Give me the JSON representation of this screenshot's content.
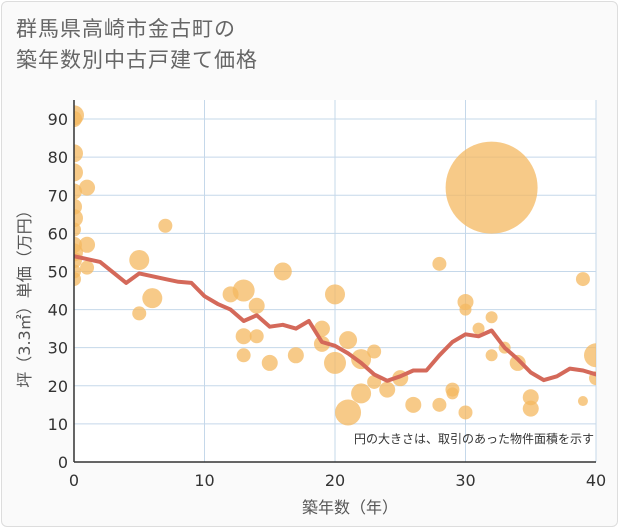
{
  "title_lines": [
    "群馬県高崎市金古町の",
    "築年数別中古戸建て価格"
  ],
  "chart_data": {
    "type": "scatter+line",
    "xlabel": "築年数（年）",
    "ylabel": "坪（3.3㎡）単価（万円）",
    "note": "円の大きさは、取引のあった物件面積を示す",
    "xlim": [
      0,
      40
    ],
    "ylim": [
      0,
      95
    ],
    "xticks": [
      0,
      10,
      20,
      30,
      40
    ],
    "yticks": [
      0,
      10,
      20,
      30,
      40,
      50,
      60,
      70,
      80,
      90
    ],
    "colors": {
      "bubble": "#f4b860",
      "line": "#d4695a",
      "grid": "#c5d8ea"
    },
    "bubbles": [
      {
        "x": 0,
        "y": 91,
        "s": 10
      },
      {
        "x": 0,
        "y": 90,
        "s": 8
      },
      {
        "x": 0,
        "y": 81,
        "s": 9
      },
      {
        "x": 0,
        "y": 76,
        "s": 9
      },
      {
        "x": 0,
        "y": 71,
        "s": 8
      },
      {
        "x": 0,
        "y": 67,
        "s": 8
      },
      {
        "x": 0,
        "y": 64,
        "s": 9
      },
      {
        "x": 0,
        "y": 61,
        "s": 7
      },
      {
        "x": 0,
        "y": 57,
        "s": 8
      },
      {
        "x": 0,
        "y": 55,
        "s": 9
      },
      {
        "x": 0,
        "y": 53,
        "s": 8
      },
      {
        "x": 0,
        "y": 50,
        "s": 7
      },
      {
        "x": 0,
        "y": 48,
        "s": 7
      },
      {
        "x": 1,
        "y": 72,
        "s": 8
      },
      {
        "x": 1,
        "y": 57,
        "s": 8
      },
      {
        "x": 1,
        "y": 51,
        "s": 7
      },
      {
        "x": 5,
        "y": 53,
        "s": 10
      },
      {
        "x": 5,
        "y": 39,
        "s": 7
      },
      {
        "x": 6,
        "y": 43,
        "s": 10
      },
      {
        "x": 7,
        "y": 62,
        "s": 7
      },
      {
        "x": 12,
        "y": 44,
        "s": 8
      },
      {
        "x": 13,
        "y": 45,
        "s": 11
      },
      {
        "x": 13,
        "y": 33,
        "s": 8
      },
      {
        "x": 13,
        "y": 28,
        "s": 7
      },
      {
        "x": 14,
        "y": 41,
        "s": 8
      },
      {
        "x": 14,
        "y": 33,
        "s": 7
      },
      {
        "x": 15,
        "y": 26,
        "s": 8
      },
      {
        "x": 16,
        "y": 50,
        "s": 9
      },
      {
        "x": 17,
        "y": 28,
        "s": 8
      },
      {
        "x": 19,
        "y": 35,
        "s": 8
      },
      {
        "x": 19,
        "y": 31,
        "s": 8
      },
      {
        "x": 20,
        "y": 44,
        "s": 10
      },
      {
        "x": 20,
        "y": 26,
        "s": 11
      },
      {
        "x": 21,
        "y": 32,
        "s": 9
      },
      {
        "x": 21,
        "y": 13,
        "s": 13
      },
      {
        "x": 22,
        "y": 27,
        "s": 10
      },
      {
        "x": 22,
        "y": 18,
        "s": 10
      },
      {
        "x": 23,
        "y": 29,
        "s": 7
      },
      {
        "x": 23,
        "y": 21,
        "s": 7
      },
      {
        "x": 24,
        "y": 19,
        "s": 8
      },
      {
        "x": 25,
        "y": 22,
        "s": 8
      },
      {
        "x": 26,
        "y": 15,
        "s": 8
      },
      {
        "x": 28,
        "y": 52,
        "s": 7
      },
      {
        "x": 28,
        "y": 15,
        "s": 7
      },
      {
        "x": 29,
        "y": 19,
        "s": 7
      },
      {
        "x": 29,
        "y": 18,
        "s": 6
      },
      {
        "x": 30,
        "y": 42,
        "s": 8
      },
      {
        "x": 30,
        "y": 40,
        "s": 6
      },
      {
        "x": 30,
        "y": 13,
        "s": 7
      },
      {
        "x": 31,
        "y": 35,
        "s": 6
      },
      {
        "x": 32,
        "y": 72,
        "s": 46
      },
      {
        "x": 32,
        "y": 38,
        "s": 6
      },
      {
        "x": 32,
        "y": 28,
        "s": 6
      },
      {
        "x": 33,
        "y": 30,
        "s": 6
      },
      {
        "x": 34,
        "y": 26,
        "s": 8
      },
      {
        "x": 35,
        "y": 17,
        "s": 8
      },
      {
        "x": 35,
        "y": 14,
        "s": 8
      },
      {
        "x": 39,
        "y": 48,
        "s": 7
      },
      {
        "x": 39,
        "y": 16,
        "s": 5
      },
      {
        "x": 40,
        "y": 28,
        "s": 12
      },
      {
        "x": 40,
        "y": 22,
        "s": 7
      }
    ],
    "line": {
      "x": [
        0,
        2,
        4,
        5,
        7,
        8,
        9,
        10,
        11,
        12,
        13,
        14,
        15,
        16,
        17,
        18,
        19,
        20,
        21,
        22,
        23,
        24,
        25,
        26,
        27,
        28,
        29,
        30,
        31,
        32,
        33,
        34,
        35,
        36,
        37,
        38,
        39,
        40
      ],
      "y": [
        54,
        52.5,
        47,
        49.5,
        48,
        47.3,
        47,
        43.5,
        41.5,
        40,
        37,
        38.5,
        35.5,
        36,
        35,
        37,
        31.5,
        30.5,
        28.5,
        26,
        23,
        21.3,
        22.5,
        24,
        24,
        28,
        31.5,
        33.5,
        33,
        34.5,
        30,
        27,
        23.5,
        21.5,
        22.5,
        24.5,
        24,
        23
      ]
    }
  }
}
